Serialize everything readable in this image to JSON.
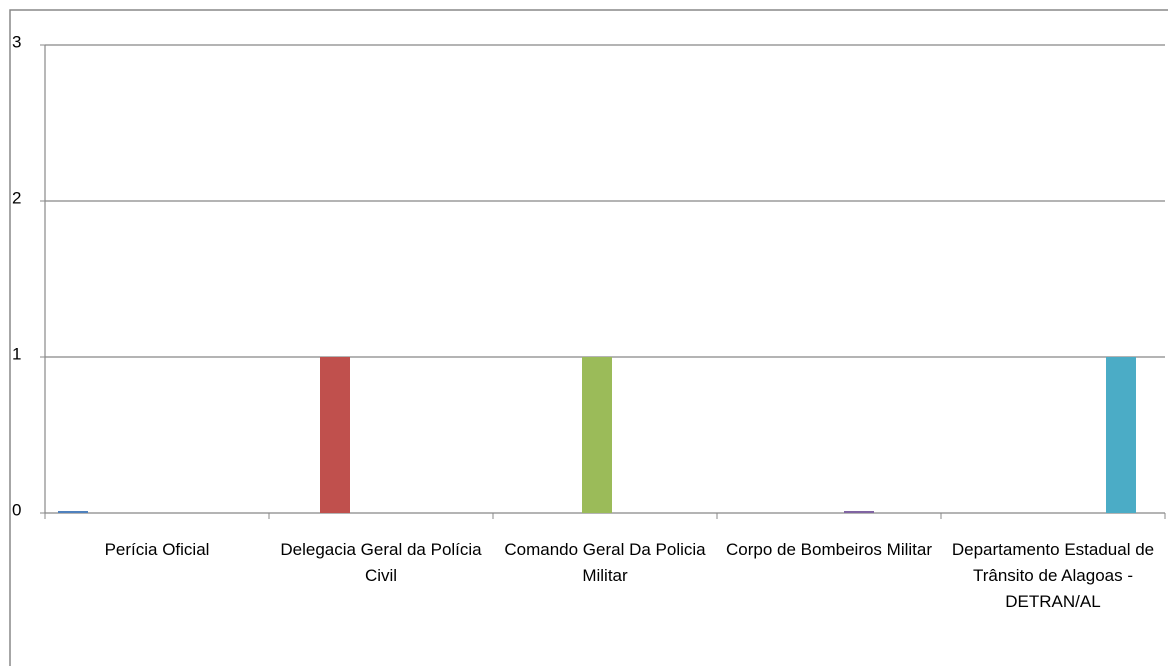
{
  "chart_data": {
    "type": "bar",
    "categories": [
      "Perícia Oficial",
      "Delegacia Geral da Polícia Civil",
      "Comando Geral Da Policia Militar",
      "Corpo de Bombeiros Militar",
      "Departamento Estadual de Trânsito de Alagoas - DETRAN/AL"
    ],
    "series": [
      {
        "color": "#4f81bd",
        "values": [
          0,
          null,
          null,
          null,
          null
        ]
      },
      {
        "color": "#c0504d",
        "values": [
          null,
          1,
          null,
          null,
          null
        ]
      },
      {
        "color": "#9bbb59",
        "values": [
          null,
          null,
          1,
          null,
          null
        ]
      },
      {
        "color": "#8064a2",
        "values": [
          null,
          null,
          null,
          0,
          null
        ]
      },
      {
        "color": "#4bacc6",
        "values": [
          null,
          null,
          null,
          null,
          1
        ]
      }
    ],
    "ylim": [
      0,
      3
    ],
    "yticks": [
      0,
      1,
      2,
      3
    ],
    "grid": true
  }
}
